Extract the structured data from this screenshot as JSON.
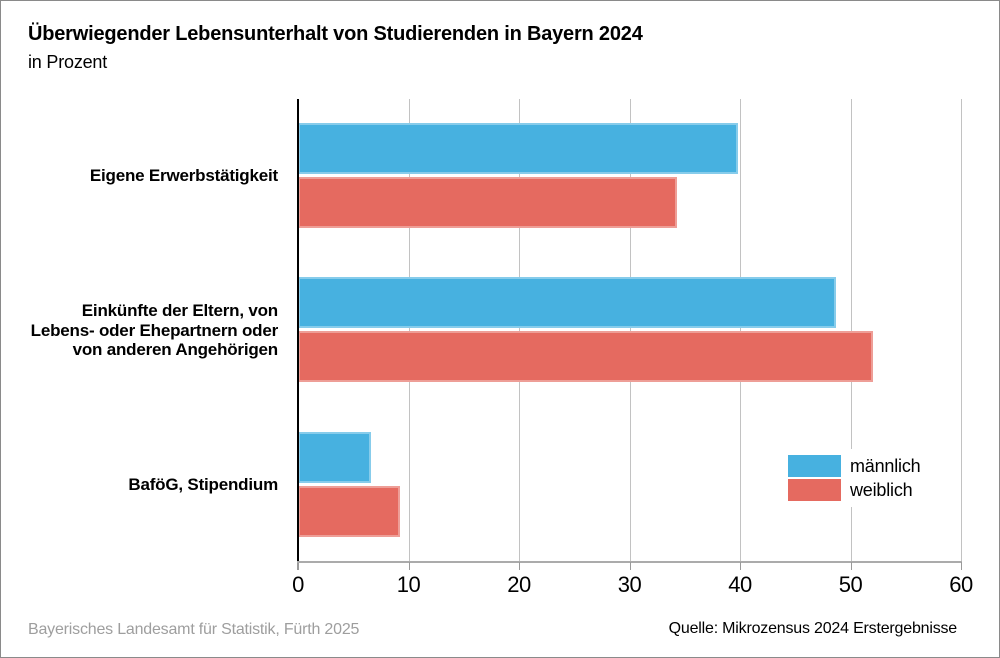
{
  "header": {
    "title": "Überwiegender Lebensunterhalt von Studierenden in Bayern 2024",
    "subtitle": "in Prozent"
  },
  "chart_data": {
    "type": "bar",
    "orientation": "horizontal",
    "title": "Überwiegender Lebensunterhalt von Studierenden in Bayern 2024",
    "subtitle": "in Prozent",
    "categories": [
      "Eigene Erwerbstätigkeit",
      "Einkünfte der Eltern, von\nLebens- oder Ehepartnern oder\nvon anderen Angehörigen",
      "BaföG, Stipendium"
    ],
    "series": [
      {
        "name": "männlich",
        "color": "#47B1E0",
        "values": [
          39.8,
          48.7,
          6.6
        ]
      },
      {
        "name": "weiblich",
        "color": "#E56A60",
        "values": [
          34.3,
          52.0,
          9.2
        ]
      }
    ],
    "xlim": [
      0,
      60
    ],
    "xticks": [
      0,
      10,
      20,
      30,
      40,
      50,
      60
    ],
    "grid": "vertical",
    "legend_position": "inside-right"
  },
  "colors": {
    "maennlich_blue": "#47B1E0",
    "weiblich_red": "#E56A60",
    "gridline": "#C2C2C2",
    "axis_black": "#000000",
    "baseline_gray": "#ABABAB",
    "footer_gray": "#9E9E9E",
    "frame_border": "#8A8A8A"
  },
  "footer": {
    "left": "Bayerisches Landesamt für Statistik, Fürth 2025",
    "right": "Quelle: Mikrozensus 2024 Erstergebnisse"
  }
}
